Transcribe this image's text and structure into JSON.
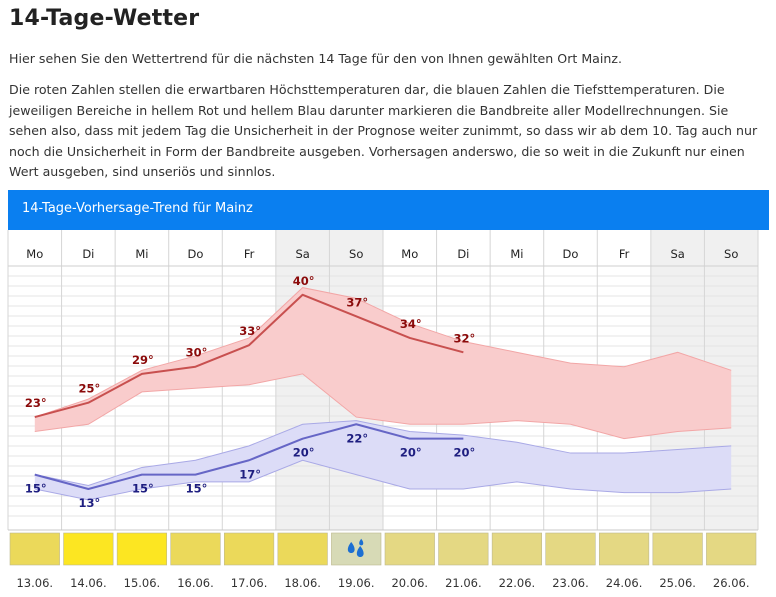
{
  "page": {
    "title": "14-Tage-Wetter",
    "intro1": "Hier sehen Sie den Wettertrend für die nächsten 14 Tage für den von Ihnen gewählten Ort Mainz.",
    "intro2": "Die roten Zahlen stellen die erwartbaren Höchsttemperaturen dar, die blauen Zahlen die Tiefsttemperaturen. Die jeweiligen Bereiche in hellem Rot und hellem Blau darunter markieren die Bandbreite aller Modellrechnungen. Sie sehen also, dass mit jedem Tag die Unsicherheit in der Prognose weiter zunimmt, so dass wir ab dem 10. Tag auch nur noch die Unsicherheit in Form der Bandbreite ausgeben. Vorhersagen anderswo, die so weit in die Zukunft nur einen Wert ausgeben, sind unseriös und sinnlos."
  },
  "chart_data": {
    "type": "line",
    "title": "14-Tage-Vorhersage-Trend für Mainz",
    "weekdays": [
      "Mo",
      "Di",
      "Mi",
      "Do",
      "Fr",
      "Sa",
      "So",
      "Mo",
      "Di",
      "Mi",
      "Do",
      "Fr",
      "Sa",
      "So"
    ],
    "dates": [
      "13.06.",
      "14.06.",
      "15.06.",
      "16.06.",
      "17.06.",
      "18.06.",
      "19.06.",
      "20.06.",
      "21.06.",
      "22.06.",
      "23.06.",
      "24.06.",
      "25.06.",
      "26.06."
    ],
    "unit": "°",
    "ylim": [
      8,
      44
    ],
    "weekend_indices": [
      5,
      6,
      12,
      13
    ],
    "max_series": {
      "name": "Höchsttemperatur",
      "color": "#c8504f",
      "label_color": "#8b0a0a",
      "values": [
        23,
        25,
        29,
        30,
        33,
        40,
        37,
        34,
        32,
        null,
        null,
        null,
        null,
        null
      ]
    },
    "max_band": {
      "color": "#f9cccc",
      "upper": [
        23,
        25.5,
        29.5,
        31.5,
        34,
        41,
        39.5,
        36,
        33.5,
        32,
        30.5,
        30,
        32,
        29.5
      ],
      "lower": [
        21,
        22,
        26.5,
        27,
        27.5,
        29,
        23,
        22,
        22,
        22.5,
        22,
        20,
        21,
        21.5
      ]
    },
    "min_series": {
      "name": "Tiefsttemperatur",
      "color": "#6666c6",
      "label_color": "#1e1e80",
      "values": [
        15,
        13,
        15,
        15,
        17,
        20,
        22,
        20,
        20,
        null,
        null,
        null,
        null,
        null
      ]
    },
    "min_band": {
      "color": "#dcdcf7",
      "upper": [
        15,
        13.5,
        16,
        17,
        19,
        22,
        22.5,
        21,
        20.5,
        19.5,
        18,
        18,
        18.5,
        19
      ],
      "lower": [
        13,
        11.5,
        13,
        14,
        14,
        17,
        15,
        13,
        13,
        14,
        13,
        12.5,
        12.5,
        13
      ]
    },
    "conditions": [
      {
        "color": "#ebd95a",
        "icon": ""
      },
      {
        "color": "#fce622",
        "icon": ""
      },
      {
        "color": "#fce622",
        "icon": ""
      },
      {
        "color": "#ebd95a",
        "icon": ""
      },
      {
        "color": "#ebd95a",
        "icon": ""
      },
      {
        "color": "#ebd95a",
        "icon": ""
      },
      {
        "color": "#d7dab6",
        "icon": "rain-drops-icon"
      },
      {
        "color": "#e4d883",
        "icon": ""
      },
      {
        "color": "#e4d883",
        "icon": ""
      },
      {
        "color": "#e4d883",
        "icon": ""
      },
      {
        "color": "#e4d883",
        "icon": ""
      },
      {
        "color": "#e4d883",
        "icon": ""
      },
      {
        "color": "#e4d883",
        "icon": ""
      },
      {
        "color": "#e4d883",
        "icon": ""
      }
    ]
  }
}
